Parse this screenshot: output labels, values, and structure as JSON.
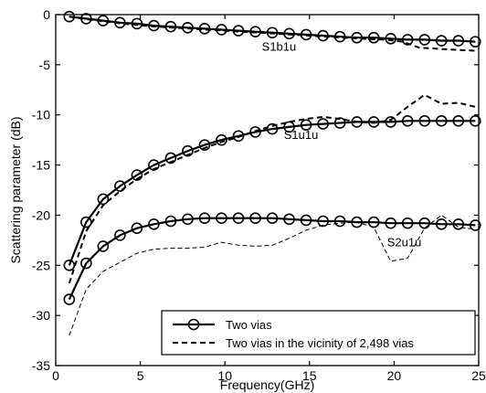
{
  "chart_data": {
    "type": "line",
    "title": "",
    "xlabel": "Frequency(GHz)",
    "ylabel": "Scattering parameter (dB)",
    "xlim": [
      0,
      25
    ],
    "ylim": [
      -35,
      0
    ],
    "xticks": [
      "0",
      "5",
      "10",
      "15",
      "20",
      "25"
    ],
    "yticks": [
      "0",
      "-5",
      "-10",
      "-15",
      "-20",
      "-25",
      "-30",
      "-35"
    ],
    "grid": false,
    "legend_position": "bottom-right",
    "legend": [
      "Two vias",
      "Two vias in the vicinity of 2,498 vias"
    ],
    "annotations": [
      {
        "text": "S1b1u",
        "x": 13.2,
        "y": -3.6
      },
      {
        "text": "S1u1u",
        "x": 14.5,
        "y": -12.4
      },
      {
        "text": "S2u1u",
        "x": 20.6,
        "y": -23.1
      }
    ],
    "series": [
      {
        "name": "Two vias",
        "group": "S1b1u",
        "style": "solid-circle",
        "x": [
          0.8,
          1.8,
          2.8,
          3.8,
          4.8,
          5.8,
          6.8,
          7.8,
          8.8,
          9.8,
          10.8,
          11.8,
          12.8,
          13.8,
          14.8,
          15.8,
          16.8,
          17.8,
          18.8,
          19.8,
          20.8,
          21.8,
          22.8,
          23.8,
          24.8
        ],
        "y": [
          -0.2,
          -0.4,
          -0.6,
          -0.8,
          -0.9,
          -1.1,
          -1.2,
          -1.3,
          -1.4,
          -1.5,
          -1.6,
          -1.7,
          -1.8,
          -1.9,
          -2.0,
          -2.1,
          -2.2,
          -2.3,
          -2.3,
          -2.4,
          -2.5,
          -2.5,
          -2.6,
          -2.6,
          -2.7
        ]
      },
      {
        "name": "Two vias in the vicinity of 2,498 vias",
        "group": "S1b1u",
        "style": "dashed",
        "x": [
          0.8,
          2,
          4,
          6,
          8,
          10,
          12,
          14,
          16,
          18,
          19.5,
          20.5,
          21.5,
          22.5,
          23.5,
          24.8
        ],
        "y": [
          -0.2,
          -0.5,
          -0.9,
          -1.2,
          -1.4,
          -1.6,
          -1.8,
          -2.0,
          -2.2,
          -2.4,
          -2.5,
          -2.7,
          -3.3,
          -3.4,
          -3.5,
          -3.6
        ]
      },
      {
        "name": "Two vias",
        "group": "S1u1u",
        "style": "solid-circle",
        "x": [
          0.8,
          1.8,
          2.8,
          3.8,
          4.8,
          5.8,
          6.8,
          7.8,
          8.8,
          9.8,
          10.8,
          11.8,
          12.8,
          13.8,
          14.8,
          15.8,
          16.8,
          17.8,
          18.8,
          19.8,
          20.8,
          21.8,
          22.8,
          23.8,
          24.8
        ],
        "y": [
          -25.0,
          -20.7,
          -18.4,
          -17.1,
          -16.0,
          -15.0,
          -14.3,
          -13.6,
          -13.0,
          -12.5,
          -12.1,
          -11.7,
          -11.4,
          -11.2,
          -11.0,
          -10.9,
          -10.8,
          -10.7,
          -10.7,
          -10.7,
          -10.6,
          -10.6,
          -10.6,
          -10.6,
          -10.6
        ]
      },
      {
        "name": "Two vias in the vicinity of 2,498 vias",
        "group": "S1u1u",
        "style": "dashed",
        "x": [
          0.8,
          1.8,
          2.8,
          3.8,
          4.8,
          5.8,
          6.8,
          7.8,
          8.8,
          9.8,
          10.8,
          11.8,
          12.8,
          13.8,
          14.8,
          15.8,
          16.8,
          17.8,
          18.8,
          19.8,
          20.8,
          21.8,
          22.8,
          23.8,
          24.8
        ],
        "y": [
          -26.8,
          -21.6,
          -19.0,
          -17.6,
          -16.4,
          -15.4,
          -14.7,
          -14.0,
          -13.3,
          -12.7,
          -12.2,
          -11.6,
          -11.1,
          -10.7,
          -10.4,
          -10.2,
          -10.4,
          -10.7,
          -10.8,
          -10.5,
          -9.2,
          -8.0,
          -8.9,
          -8.8,
          -9.2
        ]
      },
      {
        "name": "Two vias",
        "group": "S2u1u",
        "style": "solid-circle",
        "x": [
          0.8,
          1.8,
          2.8,
          3.8,
          4.8,
          5.8,
          6.8,
          7.8,
          8.8,
          9.8,
          10.8,
          11.8,
          12.8,
          13.8,
          14.8,
          15.8,
          16.8,
          17.8,
          18.8,
          19.8,
          20.8,
          21.8,
          22.8,
          23.8,
          24.8
        ],
        "y": [
          -28.4,
          -24.8,
          -23.1,
          -22.0,
          -21.3,
          -20.9,
          -20.6,
          -20.4,
          -20.3,
          -20.3,
          -20.3,
          -20.3,
          -20.3,
          -20.4,
          -20.5,
          -20.6,
          -20.6,
          -20.7,
          -20.7,
          -20.8,
          -20.8,
          -20.8,
          -20.9,
          -20.9,
          -21.0
        ]
      },
      {
        "name": "Two vias in the vicinity of 2,498 vias",
        "group": "S2u1u",
        "style": "dashed-thin",
        "x": [
          0.8,
          1.8,
          2.8,
          3.8,
          4.8,
          5.8,
          6.8,
          7.8,
          8.8,
          9.8,
          10.8,
          11.8,
          12.8,
          13.8,
          14.8,
          15.8,
          16.8,
          17.8,
          18.8,
          19.8,
          20.8,
          21.8,
          22.8,
          23.8,
          24.8
        ],
        "y": [
          -32.0,
          -27.4,
          -25.6,
          -24.7,
          -23.8,
          -23.4,
          -23.3,
          -23.3,
          -23.2,
          -22.7,
          -23.0,
          -23.1,
          -23.0,
          -22.3,
          -21.5,
          -21.0,
          -20.8,
          -20.7,
          -21.2,
          -24.6,
          -24.3,
          -21.3,
          -20.0,
          -21.2,
          -21.4
        ]
      }
    ]
  }
}
